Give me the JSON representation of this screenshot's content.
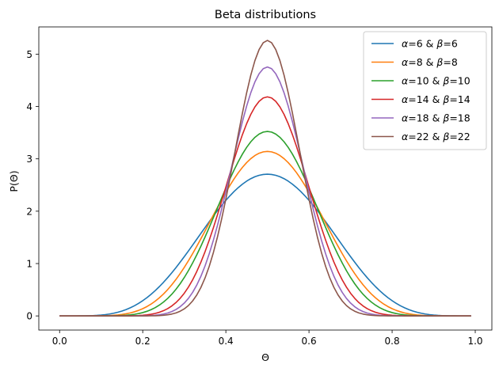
{
  "chart_data": {
    "type": "line",
    "title": "Beta distributions",
    "xlabel": "Θ",
    "ylabel": "P(Θ)",
    "xlim": [
      -0.05,
      1.04
    ],
    "ylim": [
      -0.27,
      5.52
    ],
    "xticks": [
      0.0,
      0.2,
      0.4,
      0.6,
      0.8,
      1.0
    ],
    "xtick_labels": [
      "0.0",
      "0.2",
      "0.4",
      "0.6",
      "0.8",
      "1.0"
    ],
    "yticks": [
      0,
      1,
      2,
      3,
      4,
      5
    ],
    "ytick_labels": [
      "0",
      "1",
      "2",
      "3",
      "4",
      "5"
    ],
    "grid": false,
    "legend_position": "top-right",
    "x_range": [
      0.0,
      0.99
    ],
    "series": [
      {
        "name": "α=6 & β=6",
        "label_parts": [
          "α",
          "=6 & ",
          "β",
          "=6"
        ],
        "alpha": 6,
        "beta": 6,
        "color": "#1f77b4",
        "peak": 2.71
      },
      {
        "name": "α=8 & β=8",
        "label_parts": [
          "α",
          "=8 & ",
          "β",
          "=8"
        ],
        "alpha": 8,
        "beta": 8,
        "color": "#ff7f0e",
        "peak": 3.14
      },
      {
        "name": "α=10 & β=10",
        "label_parts": [
          "α",
          "=10 & ",
          "β",
          "=10"
        ],
        "alpha": 10,
        "beta": 10,
        "color": "#2ca02c",
        "peak": 3.52
      },
      {
        "name": "α=14 & β=14",
        "label_parts": [
          "α",
          "=14 & ",
          "β",
          "=14"
        ],
        "alpha": 14,
        "beta": 14,
        "color": "#d62728",
        "peak": 4.19
      },
      {
        "name": "α=18 & β=18",
        "label_parts": [
          "α",
          "=18 & ",
          "β",
          "=18"
        ],
        "alpha": 18,
        "beta": 18,
        "color": "#9467bd",
        "peak": 4.75
      },
      {
        "name": "α=22 & β=22",
        "label_parts": [
          "α",
          "=22 & ",
          "β",
          "=22"
        ],
        "alpha": 22,
        "beta": 22,
        "color": "#8c564b",
        "peak": 5.26
      }
    ]
  }
}
